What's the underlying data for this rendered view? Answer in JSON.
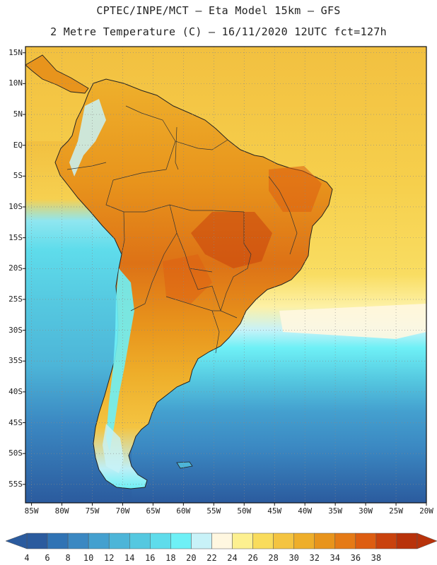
{
  "header": {
    "line1": "CPTEC/INPE/MCT –  Eta Model 15km – GFS",
    "line2": "2 Metre Temperature (C) – 16/11/2020 12UTC fct=127h"
  },
  "map": {
    "lat_labels": [
      "15N",
      "10N",
      "5N",
      "EQ",
      "5S",
      "10S",
      "15S",
      "20S",
      "25S",
      "30S",
      "35S",
      "40S",
      "45S",
      "50S",
      "55S"
    ],
    "lat_values": [
      15,
      10,
      5,
      0,
      -5,
      -10,
      -15,
      -20,
      -25,
      -30,
      -35,
      -40,
      -45,
      -50,
      -55
    ],
    "lon_labels": [
      "85W",
      "80W",
      "75W",
      "70W",
      "65W",
      "60W",
      "55W",
      "50W",
      "45W",
      "40W",
      "35W",
      "30W",
      "25W",
      "20W"
    ],
    "lon_values": [
      -85,
      -80,
      -75,
      -70,
      -65,
      -60,
      -55,
      -50,
      -45,
      -40,
      -35,
      -30,
      -25,
      -20
    ],
    "extent": {
      "lon_min": -86,
      "lon_max": -20,
      "lat_min": -58,
      "lat_max": 16
    }
  },
  "colorbar": {
    "labels": [
      "4",
      "6",
      "8",
      "10",
      "12",
      "14",
      "16",
      "18",
      "20",
      "22",
      "24",
      "26",
      "28",
      "30",
      "32",
      "34",
      "36",
      "38"
    ],
    "colors": [
      "#2b5b9e",
      "#3073b4",
      "#3b88c2",
      "#44a0cf",
      "#4db5d8",
      "#55c8e0",
      "#5fdceb",
      "#6ef0f6",
      "#c8f2f8",
      "#fff7e0",
      "#fdf090",
      "#f9dc5c",
      "#f4c441",
      "#eeae2a",
      "#e8941c",
      "#e57a16",
      "#dd5d11",
      "#c9420d",
      "#b8320a"
    ]
  },
  "legend_colors": {
    "ocean_north": "#f4c441",
    "ocean_mid": "#f9dc5c",
    "ocean_south": "#4db5d8",
    "land_hot": "#e8941c",
    "land_very_hot": "#c9420d"
  }
}
